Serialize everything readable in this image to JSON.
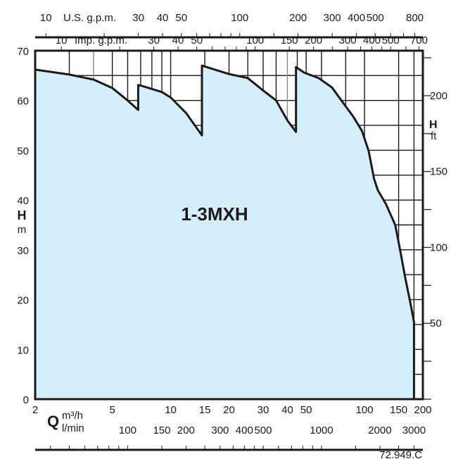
{
  "chart_data": {
    "type": "area",
    "title": "1-3MXH",
    "x_scale": "log",
    "xlim": [
      2,
      200
    ],
    "ylim": [
      0,
      70
    ],
    "grid": true,
    "fill_color": "#d5eefb",
    "line_color": "#1a1a1a",
    "xlabel": {
      "symbol": "Q",
      "unit1": "m³/h",
      "unit2": "l/min"
    },
    "ylabel": {
      "symbol": "H",
      "unit": "m"
    },
    "y2label": {
      "symbol": "H",
      "unit": "ft"
    },
    "x_ticks_m3h": [
      "2",
      "5",
      "10",
      "15",
      "20",
      "30",
      "40",
      "50",
      "100",
      "150",
      "200"
    ],
    "x_ticks_lmin": [
      "100",
      "150",
      "200",
      "300",
      "400",
      "500",
      "1000",
      "2000",
      "3000"
    ],
    "top_axis_us": {
      "label": "U.S. g.p.m.",
      "ticks": [
        "10",
        "30",
        "40",
        "50",
        "100",
        "200",
        "300",
        "400",
        "500",
        "800"
      ]
    },
    "top_axis_imp": {
      "label": "Imp. g.p.m.",
      "ticks": [
        "10",
        "30",
        "40",
        "50",
        "100",
        "150",
        "200",
        "300",
        "400",
        "500",
        "700"
      ]
    },
    "y_ticks": [
      "0",
      "10",
      "20",
      "30",
      "40",
      "50",
      "60",
      "70"
    ],
    "y2_ticks": [
      "50",
      "100",
      "150",
      "200"
    ],
    "x_gridlines": [
      3,
      4,
      5,
      6,
      7,
      8,
      9,
      10,
      15,
      20,
      25,
      30,
      35,
      40,
      45,
      50,
      60,
      80,
      100,
      150,
      180
    ],
    "series": [
      {
        "points": [
          [
            2,
            66.2
          ],
          [
            3,
            65.2
          ],
          [
            4,
            64.2
          ],
          [
            5,
            62.5
          ],
          [
            6,
            60.0
          ],
          [
            6.8,
            58.1
          ],
          [
            6.8,
            63.1
          ],
          [
            7,
            63.0
          ],
          [
            9,
            61.7
          ],
          [
            10,
            60.6
          ],
          [
            12,
            57.5
          ],
          [
            14.5,
            53.0
          ],
          [
            14.5,
            67.0
          ],
          [
            20,
            65.3
          ],
          [
            25,
            64.5
          ],
          [
            30,
            62.0
          ],
          [
            35,
            60.0
          ],
          [
            40,
            56.0
          ],
          [
            44.3,
            53.7
          ],
          [
            44.3,
            66.7
          ],
          [
            48.8,
            65.6
          ],
          [
            58,
            64.5
          ],
          [
            68,
            62.6
          ],
          [
            78,
            59.4
          ],
          [
            87,
            56.9
          ],
          [
            97,
            53.9
          ],
          [
            105,
            49.9
          ],
          [
            112,
            44.3
          ],
          [
            117,
            42.0
          ],
          [
            129,
            39.2
          ],
          [
            144,
            35.0
          ],
          [
            153,
            29.8
          ],
          [
            162,
            24.5
          ],
          [
            172,
            19.5
          ],
          [
            180,
            15.5
          ],
          [
            180,
            0
          ]
        ]
      }
    ],
    "code": "72.949.C"
  }
}
